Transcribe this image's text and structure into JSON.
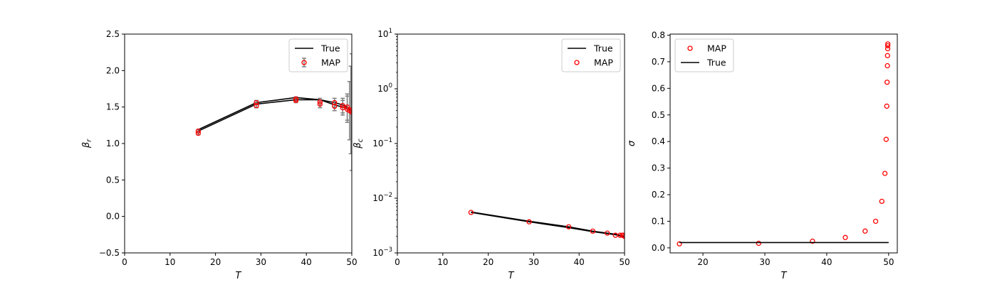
{
  "colors": {
    "true_line": "#000000",
    "map_marker": "#ff0000",
    "error_bar": "#808080",
    "axes": "#000000",
    "legend_border": "#cccccc"
  },
  "chart_data": [
    {
      "id": "beta_r",
      "type": "line",
      "xlabel": "T",
      "ylabel": "β_r",
      "ylabel_main": "β",
      "ylabel_sub": "r",
      "xlim": [
        0,
        50
      ],
      "ylim": [
        -0.5,
        2.5
      ],
      "yscale": "linear",
      "xticks": [
        0,
        10,
        20,
        30,
        40,
        50
      ],
      "xtick_labels": [
        "0",
        "10",
        "20",
        "30",
        "40",
        "50"
      ],
      "yticks": [
        -0.5,
        0.0,
        0.5,
        1.0,
        1.5,
        2.0,
        2.5
      ],
      "ytick_labels": [
        "−0.5",
        "0.0",
        "0.5",
        "1.0",
        "1.5",
        "2.0",
        "2.5"
      ],
      "grid": false,
      "legend": {
        "placement": "upper-right",
        "entries": [
          "True",
          "MAP"
        ]
      },
      "series": [
        {
          "name": "True",
          "kind": "line",
          "lines": [
            {
              "x": [
                16.2,
                29.0,
                37.7,
                43.0,
                46.2,
                48.0,
                49.0,
                49.5,
                49.8,
                50.0
              ],
              "y": [
                1.19,
                1.56,
                1.63,
                1.6,
                1.56,
                1.53,
                1.5,
                1.48,
                1.46,
                1.45
              ]
            },
            {
              "x": [
                16.2,
                29.0,
                37.7,
                43.0,
                46.2,
                48.0,
                49.0,
                49.5,
                49.8,
                50.0
              ],
              "y": [
                1.17,
                1.54,
                1.6,
                1.6,
                1.53,
                1.5,
                1.48,
                1.46,
                1.45,
                1.44
              ]
            }
          ]
        },
        {
          "name": "MAP",
          "kind": "errorbar",
          "x": [
            16.2,
            16.2,
            29.0,
            29.0,
            37.7,
            37.7,
            43.0,
            43.0,
            46.2,
            46.2,
            48.0,
            48.0,
            49.0,
            49.0,
            49.5,
            49.8,
            50.0
          ],
          "y": [
            1.14,
            1.17,
            1.52,
            1.56,
            1.59,
            1.61,
            1.54,
            1.57,
            1.51,
            1.56,
            1.49,
            1.52,
            1.5,
            1.47,
            1.45,
            1.46,
            1.43
          ],
          "err": [
            0.02,
            0.02,
            0.03,
            0.03,
            0.03,
            0.03,
            0.05,
            0.05,
            0.06,
            0.06,
            0.1,
            0.1,
            0.18,
            0.18,
            0.4,
            0.6,
            0.8
          ]
        }
      ]
    },
    {
      "id": "beta_c",
      "type": "line",
      "xlabel": "T",
      "ylabel": "β_c",
      "ylabel_main": "β",
      "ylabel_sub": "c",
      "xlim": [
        0,
        50
      ],
      "ylim": [
        0.001,
        10
      ],
      "yscale": "log",
      "xticks": [
        0,
        10,
        20,
        30,
        40,
        50
      ],
      "xtick_labels": [
        "0",
        "10",
        "20",
        "30",
        "40",
        "50"
      ],
      "yticks": [
        0.001,
        0.01,
        0.1,
        1,
        10
      ],
      "ytick_labels": [
        {
          "base": "10",
          "exp": "−3"
        },
        {
          "base": "10",
          "exp": "−2"
        },
        {
          "base": "10",
          "exp": "−1"
        },
        {
          "base": "10",
          "exp": "0"
        },
        {
          "base": "10",
          "exp": "1"
        }
      ],
      "grid": false,
      "legend": {
        "placement": "upper-right",
        "entries": [
          "True",
          "MAP"
        ]
      },
      "series": [
        {
          "name": "True",
          "kind": "line",
          "lines": [
            {
              "x": [
                16.2,
                29.0,
                37.7,
                43.0,
                46.2,
                48.0,
                49.0,
                50.0
              ],
              "y": [
                0.0056,
                0.0038,
                0.003,
                0.0025,
                0.0023,
                0.0022,
                0.0021,
                0.002
              ]
            },
            {
              "x": [
                16.2,
                29.0,
                37.7,
                43.0,
                46.2,
                48.0,
                49.0,
                50.0
              ],
              "y": [
                0.0055,
                0.0037,
                0.0029,
                0.00245,
                0.00225,
                0.00215,
                0.00205,
                0.00198
              ]
            }
          ]
        },
        {
          "name": "MAP",
          "kind": "scatter",
          "x": [
            16.2,
            29.0,
            37.7,
            43.0,
            46.2,
            48.0,
            49.0,
            49.5,
            49.8,
            50.0
          ],
          "y": [
            0.0055,
            0.0037,
            0.003,
            0.0025,
            0.0023,
            0.0021,
            0.0021,
            0.0021,
            0.0021,
            0.002
          ]
        }
      ]
    },
    {
      "id": "sigma",
      "type": "scatter",
      "xlabel": "T",
      "ylabel": "σ",
      "xlim": [
        14.7,
        51.4
      ],
      "ylim": [
        -0.019,
        0.804
      ],
      "yscale": "linear",
      "xticks": [
        20,
        30,
        40,
        50
      ],
      "xtick_labels": [
        "20",
        "30",
        "40",
        "50"
      ],
      "yticks": [
        0.0,
        0.1,
        0.2,
        0.3,
        0.4,
        0.5,
        0.6,
        0.7,
        0.8
      ],
      "ytick_labels": [
        "0.0",
        "0.1",
        "0.2",
        "0.3",
        "0.4",
        "0.5",
        "0.6",
        "0.7",
        "0.8"
      ],
      "grid": false,
      "legend": {
        "placement": "upper-left",
        "entries": [
          "MAP",
          "True"
        ]
      },
      "series": [
        {
          "name": "MAP",
          "kind": "scatter",
          "x": [
            16.2,
            29.0,
            37.7,
            43.0,
            46.2,
            47.9,
            48.9,
            49.4,
            49.6,
            49.7,
            49.75,
            49.8,
            49.82,
            49.85,
            49.86,
            49.87
          ],
          "y": [
            0.015,
            0.017,
            0.025,
            0.039,
            0.063,
            0.1,
            0.175,
            0.28,
            0.408,
            0.533,
            0.623,
            0.685,
            0.723,
            0.749,
            0.76,
            0.767
          ]
        },
        {
          "name": "True",
          "kind": "line",
          "lines": [
            {
              "x": [
                16.2,
                50.0
              ],
              "y": [
                0.02,
                0.02
              ]
            }
          ]
        }
      ]
    }
  ]
}
